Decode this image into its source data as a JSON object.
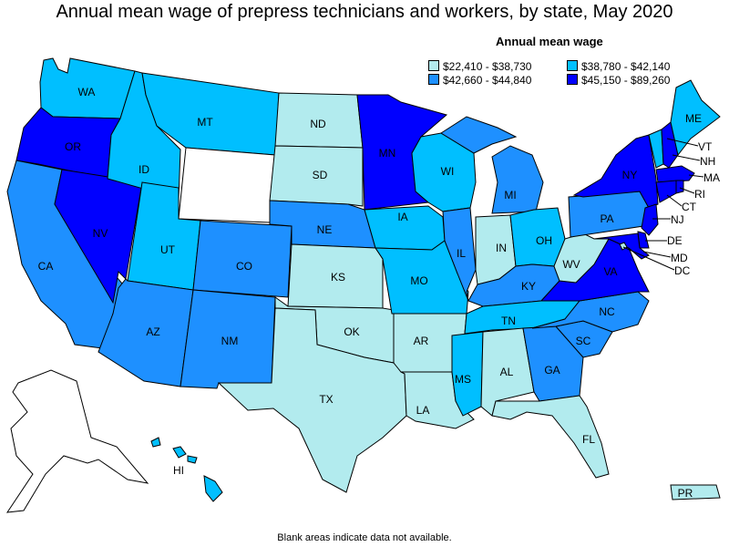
{
  "title": "Annual mean wage of prepress technicians and workers, by state, May 2020",
  "legend": {
    "title": "Annual mean wage",
    "items": [
      {
        "label": "$22,410 - $38,730",
        "color": "#b2ebee"
      },
      {
        "label": "$38,780 - $42,140",
        "color": "#00bfff"
      },
      {
        "label": "$42,660 - $44,840",
        "color": "#1e90ff"
      },
      {
        "label": "$45,150 - $89,260",
        "color": "#0000ff"
      }
    ]
  },
  "footnote": "Blank areas indicate data not available.",
  "colors": {
    "no_data": "#ffffff",
    "outline": "#000000"
  },
  "states": {
    "WA": {
      "label": "WA",
      "tier": 1
    },
    "OR": {
      "label": "OR",
      "tier": 3
    },
    "CA": {
      "label": "CA",
      "tier": 2
    },
    "NV": {
      "label": "NV",
      "tier": 3
    },
    "ID": {
      "label": "ID",
      "tier": 1
    },
    "MT": {
      "label": "MT",
      "tier": 1
    },
    "WY": {
      "label": "",
      "tier": -1
    },
    "UT": {
      "label": "UT",
      "tier": 1
    },
    "AZ": {
      "label": "AZ",
      "tier": 2
    },
    "CO": {
      "label": "CO",
      "tier": 2
    },
    "NM": {
      "label": "NM",
      "tier": 2
    },
    "ND": {
      "label": "ND",
      "tier": 0
    },
    "SD": {
      "label": "SD",
      "tier": 0
    },
    "NE": {
      "label": "NE",
      "tier": 2
    },
    "KS": {
      "label": "KS",
      "tier": 0
    },
    "OK": {
      "label": "OK",
      "tier": 0
    },
    "TX": {
      "label": "TX",
      "tier": 0
    },
    "MN": {
      "label": "MN",
      "tier": 3
    },
    "IA": {
      "label": "IA",
      "tier": 1
    },
    "MO": {
      "label": "MO",
      "tier": 1
    },
    "AR": {
      "label": "AR",
      "tier": 0
    },
    "LA": {
      "label": "LA",
      "tier": 0
    },
    "WI": {
      "label": "WI",
      "tier": 1
    },
    "IL": {
      "label": "IL",
      "tier": 2
    },
    "MI": {
      "label": "MI",
      "tier": 2
    },
    "IN": {
      "label": "IN",
      "tier": 0
    },
    "OH": {
      "label": "OH",
      "tier": 1
    },
    "KY": {
      "label": "KY",
      "tier": 2
    },
    "TN": {
      "label": "TN",
      "tier": 1
    },
    "MS": {
      "label": "MS",
      "tier": 1
    },
    "AL": {
      "label": "AL",
      "tier": 0
    },
    "GA": {
      "label": "GA",
      "tier": 2
    },
    "FL": {
      "label": "FL",
      "tier": 0
    },
    "SC": {
      "label": "SC",
      "tier": 2
    },
    "NC": {
      "label": "NC",
      "tier": 2
    },
    "VA": {
      "label": "VA",
      "tier": 3
    },
    "WV": {
      "label": "WV",
      "tier": 0
    },
    "PA": {
      "label": "PA",
      "tier": 2
    },
    "NY": {
      "label": "NY",
      "tier": 3
    },
    "VT": {
      "label": "VT",
      "tier": 1
    },
    "NH": {
      "label": "NH",
      "tier": 3
    },
    "ME": {
      "label": "ME",
      "tier": 1
    },
    "MA": {
      "label": "MA",
      "tier": 3
    },
    "RI": {
      "label": "RI",
      "tier": 3
    },
    "CT": {
      "label": "CT",
      "tier": 3
    },
    "NJ": {
      "label": "NJ",
      "tier": 3
    },
    "DE": {
      "label": "DE",
      "tier": 3
    },
    "MD": {
      "label": "MD",
      "tier": 3
    },
    "DC": {
      "label": "DC",
      "tier": 0
    },
    "AK": {
      "label": "",
      "tier": -1
    },
    "HI": {
      "label": "HI",
      "tier": 1
    },
    "PR": {
      "label": "PR",
      "tier": 0
    }
  }
}
